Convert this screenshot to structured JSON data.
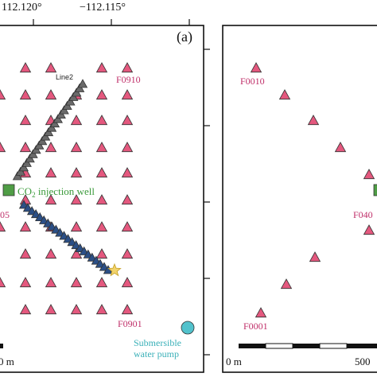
{
  "figure": {
    "top_axis_ticks": [
      "112.120°",
      "−112.115°"
    ],
    "panel_left": {
      "tag": "(a)"
    },
    "panel_right": {}
  },
  "colors": {
    "station": "#e4587e",
    "line2": "#6a6a6a",
    "line1": "#2b4f86",
    "well": "#4f9d45",
    "pump": "#52c2cc",
    "star": "#f2d36b",
    "station_label": "#c0306a"
  },
  "legend_labels": {
    "line2": "Line2",
    "well_prefix": "CO",
    "well_sub": "2",
    "well_suffix": " injection well",
    "pump_line1": "Submersible",
    "pump_line2": "water pump",
    "star_icon": "star-icon"
  },
  "station_labels": {
    "left": [
      "F0910",
      "05",
      "F0901"
    ],
    "right": [
      "F0010",
      "F040",
      "F0001"
    ]
  },
  "scale_bars": {
    "left_label": "0 m",
    "right_left_label": "0 m",
    "right_right_label": "500"
  }
}
